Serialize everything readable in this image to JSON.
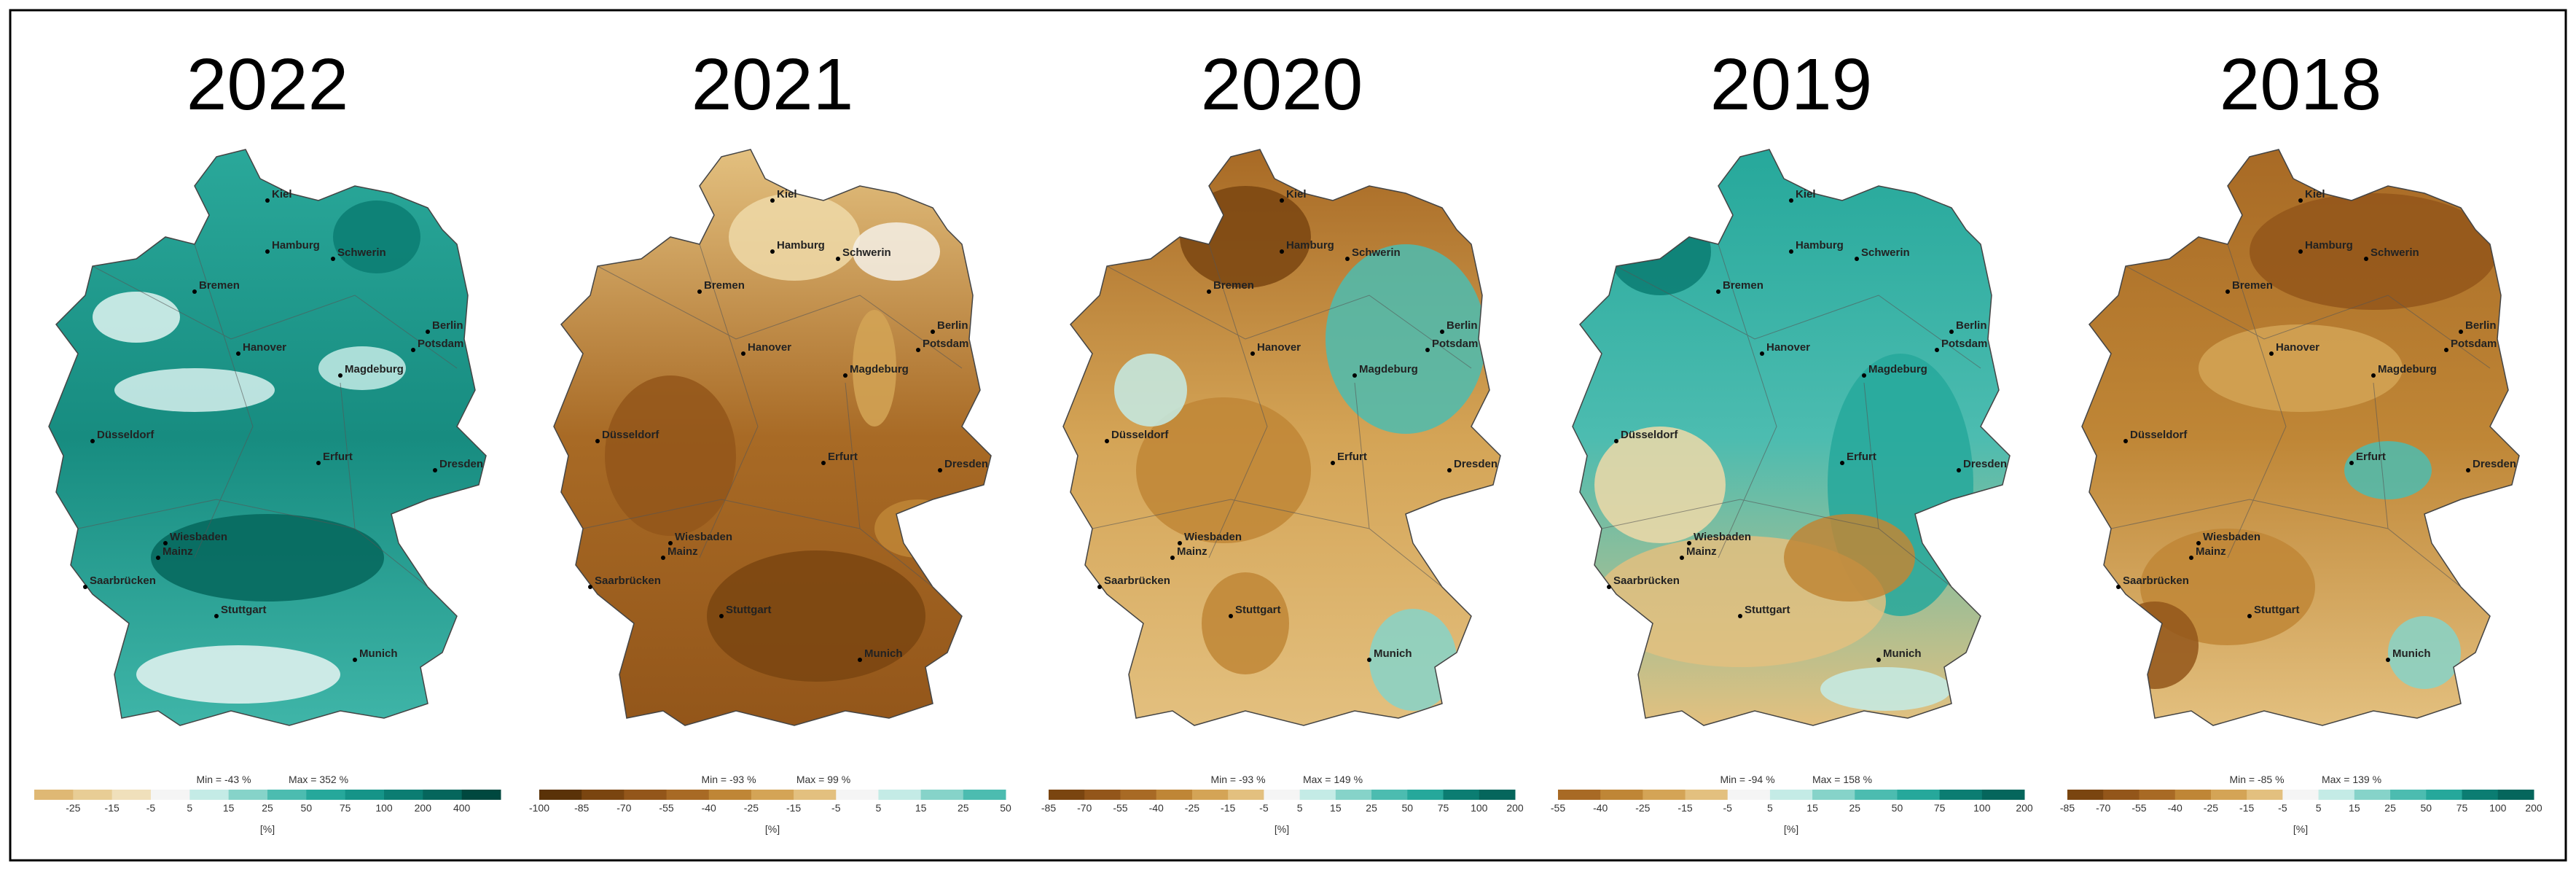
{
  "cities": [
    "Kiel",
    "Hamburg",
    "Schwerin",
    "Bremen",
    "Hanover",
    "Berlin",
    "Potsdam",
    "Magdeburg",
    "Düsseldorf",
    "Erfurt",
    "Dresden",
    "Wiesbaden",
    "Mainz",
    "Saarbrücken",
    "Stuttgart",
    "Munich"
  ],
  "unit": "[%]",
  "panels": [
    {
      "title": "2022",
      "legend": {
        "min": "Min = -43 %",
        "max": "Max = 352 %",
        "ticks": [
          "-25",
          "-15",
          "-5",
          "5",
          "15",
          "25",
          "50",
          "75",
          "100",
          "200",
          "400"
        ],
        "colors": [
          "#dfb874",
          "#e8cd95",
          "#f0e0bb",
          "#f5f5f5",
          "#c4ebe6",
          "#86d3c9",
          "#4cbcb0",
          "#26a89b",
          "#159488",
          "#0b7d72",
          "#05665c",
          "#00483f"
        ]
      }
    },
    {
      "title": "2021",
      "legend": {
        "min": "Min = -93 %",
        "max": "Max = 99 %",
        "ticks": [
          "-100",
          "-85",
          "-70",
          "-55",
          "-40",
          "-25",
          "-15",
          "-5",
          "5",
          "15",
          "25",
          "50"
        ],
        "colors": [
          "#5a3208",
          "#7a4510",
          "#93561a",
          "#a86a25",
          "#bf8636",
          "#d4a456",
          "#e3c07f",
          "#f5f5f5",
          "#c4ebe6",
          "#86d3c9",
          "#4cbcb0"
        ]
      }
    },
    {
      "title": "2020",
      "legend": {
        "min": "Min = -93 %",
        "max": "Max = 149 %",
        "ticks": [
          "-85",
          "-70",
          "-55",
          "-40",
          "-25",
          "-15",
          "-5",
          "5",
          "15",
          "25",
          "50",
          "75",
          "100",
          "200"
        ],
        "colors": [
          "#7a4510",
          "#93561a",
          "#a86a25",
          "#bf8636",
          "#d4a456",
          "#e3c07f",
          "#f5f5f5",
          "#c4ebe6",
          "#86d3c9",
          "#4cbcb0",
          "#26a89b",
          "#0b7d72",
          "#05665c"
        ]
      }
    },
    {
      "title": "2019",
      "legend": {
        "min": "Min = -94 %",
        "max": "Max = 158 %",
        "ticks": [
          "-55",
          "-40",
          "-25",
          "-15",
          "-5",
          "5",
          "15",
          "25",
          "50",
          "75",
          "100",
          "200"
        ],
        "colors": [
          "#a86a25",
          "#bf8636",
          "#d4a456",
          "#e3c07f",
          "#f5f5f5",
          "#c4ebe6",
          "#86d3c9",
          "#4cbcb0",
          "#26a89b",
          "#0b7d72",
          "#05665c"
        ]
      }
    },
    {
      "title": "2018",
      "legend": {
        "min": "Min = -85 %",
        "max": "Max = 139 %",
        "ticks": [
          "-85",
          "-70",
          "-55",
          "-40",
          "-25",
          "-15",
          "-5",
          "5",
          "15",
          "25",
          "50",
          "75",
          "100",
          "200"
        ],
        "colors": [
          "#7a4510",
          "#93561a",
          "#a86a25",
          "#bf8636",
          "#d4a456",
          "#e3c07f",
          "#f5f5f5",
          "#c4ebe6",
          "#86d3c9",
          "#4cbcb0",
          "#26a89b",
          "#0b7d72",
          "#05665c"
        ]
      }
    }
  ]
}
